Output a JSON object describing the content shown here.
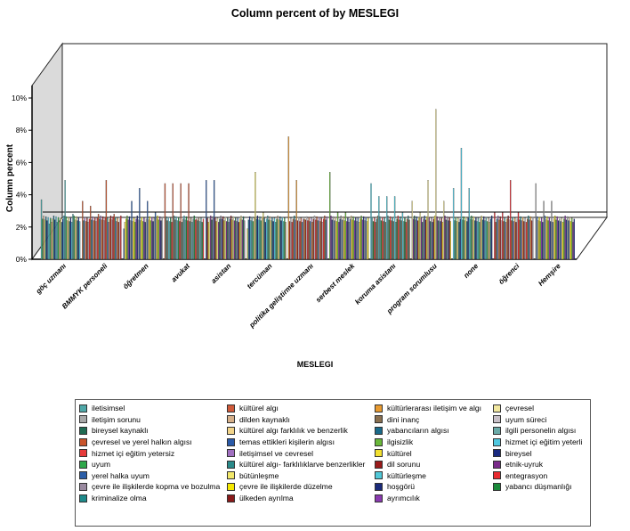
{
  "chart_data": {
    "type": "bar",
    "title": "Column percent of  by MESLEGI",
    "xlabel": "MESLEGI",
    "ylabel": "Column percent",
    "ylim": [
      0,
      10
    ],
    "y_ticks": [
      "0%",
      "2%",
      "4%",
      "6%",
      "8%",
      "10%"
    ],
    "legend_position": "bottom",
    "grid": false,
    "categories": [
      "göç uzmanı",
      "BMMYK personeli",
      "öğretmen",
      "avukat",
      "asistan",
      "tercüman",
      "politika geliştirme uzmanı",
      "serbest meslek",
      "koruma asistanı",
      "program sorumlusu",
      "none",
      "öğrenci",
      "Hemşire"
    ],
    "series": [
      {
        "name": "iletisimsel",
        "color": "#4fa8a8"
      },
      {
        "name": "iletişim sorunu",
        "color": "#a8a8a8"
      },
      {
        "name": "bireysel kaynaklı",
        "color": "#1e6a52"
      },
      {
        "name": "çevresel ve yerel halkın algısı",
        "color": "#c9542c"
      },
      {
        "name": "hizmet içi eğitim yetersiz",
        "color": "#e63a3a"
      },
      {
        "name": "uyum",
        "color": "#2ea84a"
      },
      {
        "name": "yerel halka uyum",
        "color": "#2b5ea8"
      },
      {
        "name": "çevre ile ilişkilerde kopma ve bozulma",
        "color": "#9a8aa0"
      },
      {
        "name": "kriminalize olma",
        "color": "#1e8a8a"
      },
      {
        "name": "kültürel algı",
        "color": "#d05a3a"
      },
      {
        "name": "dilden kaynaklı",
        "color": "#d6b08a"
      },
      {
        "name": "kültürel algı farklılık ve benzerlik",
        "color": "#f2d48a"
      },
      {
        "name": "temas ettikleri kişilerin algısı",
        "color": "#2a5aa8"
      },
      {
        "name": "iletişimsel ve cevresel",
        "color": "#a070c0"
      },
      {
        "name": "kültürel algı- farklılıklarve benzerlikler",
        "color": "#2a8a8a"
      },
      {
        "name": "bütünleşme",
        "color": "#f2e86a"
      },
      {
        "name": "çevre ile ilişkilerde düzelme",
        "color": "#f5e800"
      },
      {
        "name": "ülkeden ayrılma",
        "color": "#8a1a1a"
      },
      {
        "name": "kültürlerarası iletişim ve algı",
        "color": "#e89a30"
      },
      {
        "name": "dini inanç",
        "color": "#8a7050"
      },
      {
        "name": "yabancıların algısı",
        "color": "#1a6a8a"
      },
      {
        "name": "ilgisizlik",
        "color": "#6ab83a"
      },
      {
        "name": "kültürel",
        "color": "#f2e030"
      },
      {
        "name": "dil sorunu",
        "color": "#9a1a1a"
      },
      {
        "name": "kültürleşme",
        "color": "#50c8d8"
      },
      {
        "name": "hoşgörü",
        "color": "#1a2a7a"
      },
      {
        "name": "ayrımcılık",
        "color": "#8a3ab0"
      },
      {
        "name": "çevresel",
        "color": "#f2e8a0"
      },
      {
        "name": "uyum süreci",
        "color": "#c8c0c8"
      },
      {
        "name": "ilgili personelin algısı",
        "color": "#6aaaa8"
      },
      {
        "name": "hizmet içi eğitim yeterli",
        "color": "#50c8e0"
      },
      {
        "name": "bireysel",
        "color": "#1a2a80"
      },
      {
        "name": "etnik-uyruk",
        "color": "#7a2a8a"
      },
      {
        "name": "entegrasyon",
        "color": "#e82a30"
      },
      {
        "name": "yabancı düşmanlığı",
        "color": "#1a8a3a"
      }
    ],
    "highlights": [
      {
        "category": "göç uzmanı",
        "values": [
          3.7,
          2.2,
          2.3,
          4.9,
          2.8,
          2.9
        ]
      },
      {
        "category": "BMMYK personeli",
        "values": [
          3.6,
          3.3,
          2.8,
          4.9,
          2.8
        ]
      },
      {
        "category": "öğretmen",
        "values": [
          1.9,
          3.6,
          4.4,
          3.6,
          2.9
        ]
      },
      {
        "category": "avukat",
        "values": [
          4.7,
          4.7,
          4.7,
          4.7,
          2.5
        ]
      },
      {
        "category": "asistan",
        "values": [
          4.9,
          4.9,
          2.5
        ]
      },
      {
        "category": "tercüman",
        "values": [
          1.9,
          5.4,
          2.9
        ]
      },
      {
        "category": "politika geliştirme uzmanı",
        "values": [
          7.6,
          4.9,
          2.5
        ]
      },
      {
        "category": "serbest meslek",
        "values": [
          5.4,
          2.9,
          2.9
        ]
      },
      {
        "category": "koruma asistanı",
        "values": [
          4.7,
          3.9,
          3.9,
          3.9,
          2.9
        ]
      },
      {
        "category": "program sorumlusu",
        "values": [
          3.6,
          2.9,
          4.9,
          9.3,
          3.6
        ]
      },
      {
        "category": "none",
        "values": [
          4.4,
          6.9,
          4.4
        ]
      },
      {
        "category": "öğrenci",
        "values": [
          2.9,
          2.9,
          4.9,
          2.9
        ]
      },
      {
        "category": "Hemşire",
        "values": [
          4.7,
          3.6,
          3.6,
          2.5
        ]
      }
    ]
  }
}
